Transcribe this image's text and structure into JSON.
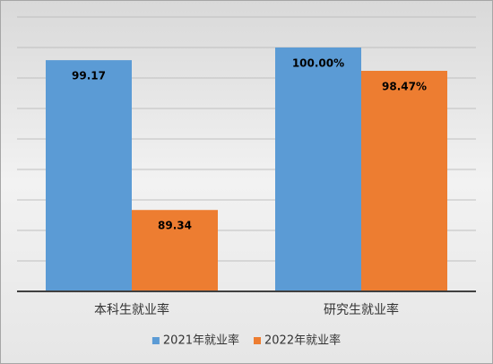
{
  "chart_data": {
    "type": "bar",
    "categories": [
      "本科生就业率",
      "研究生就业率"
    ],
    "series": [
      {
        "name": "2021年就业率",
        "color": "#5b9bd5",
        "values": [
          99.17,
          100
        ],
        "value_labels": [
          "99.17",
          "100.00%"
        ]
      },
      {
        "name": "2022年就业率",
        "color": "#ed7d31",
        "values": [
          89.34,
          98.47
        ],
        "value_labels": [
          "89.34",
          "98.47%"
        ]
      }
    ],
    "ylim": [
      84,
      102
    ],
    "yticks": [
      84,
      86,
      88,
      90,
      92,
      94,
      96,
      98,
      100,
      102
    ],
    "grid": true,
    "show_ytick_labels": false,
    "legend": "bottom"
  }
}
